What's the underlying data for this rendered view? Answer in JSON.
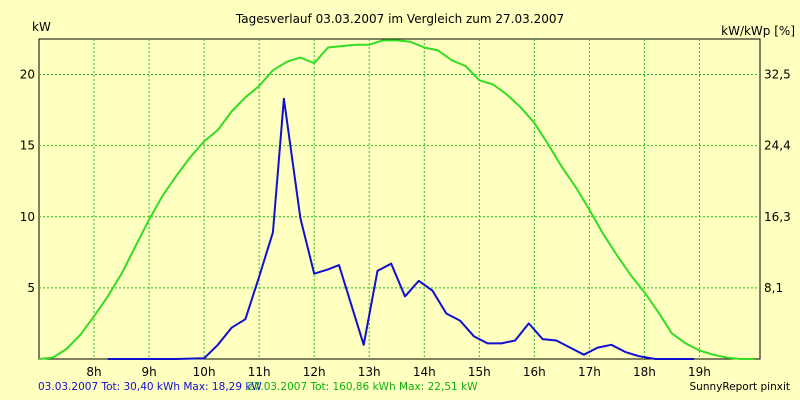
{
  "chart_data": {
    "type": "line",
    "title": "Tagesverlauf 03.03.2007 im Vergleich zum 27.03.2007",
    "ylabel_left": "kW",
    "ylabel_right": "kW/kWp [%]",
    "xlim": [
      7.0,
      20.1
    ],
    "ylim": [
      0,
      22.5
    ],
    "x_ticks": [
      {
        "x": 8,
        "label": "8h"
      },
      {
        "x": 9,
        "label": "9h"
      },
      {
        "x": 10,
        "label": "10h"
      },
      {
        "x": 11,
        "label": "11h"
      },
      {
        "x": 12,
        "label": "12h"
      },
      {
        "x": 13,
        "label": "13h"
      },
      {
        "x": 14,
        "label": "14h"
      },
      {
        "x": 15,
        "label": "15h"
      },
      {
        "x": 16,
        "label": "16h"
      },
      {
        "x": 17,
        "label": "17h"
      },
      {
        "x": 18,
        "label": "18h"
      },
      {
        "x": 19,
        "label": "19h"
      }
    ],
    "y_ticks_left": [
      {
        "v": 5,
        "label": "5"
      },
      {
        "v": 10,
        "label": "10"
      },
      {
        "v": 15,
        "label": "15"
      },
      {
        "v": 20,
        "label": "20"
      }
    ],
    "y_ticks_right": [
      {
        "v": 5,
        "label": "8,1"
      },
      {
        "v": 10,
        "label": "16,3"
      },
      {
        "v": 15,
        "label": "24,4"
      },
      {
        "v": 20,
        "label": "32,5"
      }
    ],
    "grid": true,
    "series": [
      {
        "name": "03.03.2007",
        "color": "#1010d0",
        "points": [
          [
            8.25,
            0
          ],
          [
            9.5,
            0
          ],
          [
            10.0,
            0.05
          ],
          [
            10.25,
            1.0
          ],
          [
            10.5,
            2.2
          ],
          [
            10.75,
            2.8
          ],
          [
            11.0,
            5.8
          ],
          [
            11.25,
            8.9
          ],
          [
            11.45,
            18.3
          ],
          [
            11.75,
            9.9
          ],
          [
            12.0,
            6.0
          ],
          [
            12.25,
            6.3
          ],
          [
            12.45,
            6.6
          ],
          [
            12.9,
            1.0
          ],
          [
            13.15,
            6.2
          ],
          [
            13.4,
            6.7
          ],
          [
            13.65,
            4.4
          ],
          [
            13.9,
            5.5
          ],
          [
            14.15,
            4.8
          ],
          [
            14.4,
            3.2
          ],
          [
            14.65,
            2.7
          ],
          [
            14.9,
            1.6
          ],
          [
            15.15,
            1.1
          ],
          [
            15.4,
            1.1
          ],
          [
            15.65,
            1.3
          ],
          [
            15.9,
            2.5
          ],
          [
            16.15,
            1.4
          ],
          [
            16.4,
            1.3
          ],
          [
            16.65,
            0.8
          ],
          [
            16.9,
            0.3
          ],
          [
            17.15,
            0.8
          ],
          [
            17.4,
            1.0
          ],
          [
            17.65,
            0.5
          ],
          [
            17.9,
            0.2
          ],
          [
            18.2,
            0.0
          ],
          [
            18.9,
            0.0
          ]
        ]
      },
      {
        "name": "27.03.2007",
        "color": "#33dd22",
        "points": [
          [
            7.0,
            0
          ],
          [
            7.25,
            0.1
          ],
          [
            7.5,
            0.7
          ],
          [
            7.75,
            1.7
          ],
          [
            8.0,
            3.0
          ],
          [
            8.25,
            4.4
          ],
          [
            8.5,
            6.0
          ],
          [
            8.75,
            7.9
          ],
          [
            9.0,
            9.8
          ],
          [
            9.25,
            11.5
          ],
          [
            9.5,
            12.9
          ],
          [
            9.75,
            14.2
          ],
          [
            10.0,
            15.3
          ],
          [
            10.25,
            16.1
          ],
          [
            10.5,
            17.4
          ],
          [
            10.75,
            18.4
          ],
          [
            11.0,
            19.2
          ],
          [
            11.25,
            20.3
          ],
          [
            11.5,
            20.9
          ],
          [
            11.75,
            21.2
          ],
          [
            12.0,
            20.8
          ],
          [
            12.25,
            21.9
          ],
          [
            12.5,
            22.0
          ],
          [
            12.75,
            22.1
          ],
          [
            13.0,
            22.1
          ],
          [
            13.25,
            22.4
          ],
          [
            13.5,
            22.4
          ],
          [
            13.75,
            22.3
          ],
          [
            14.0,
            21.9
          ],
          [
            14.25,
            21.7
          ],
          [
            14.5,
            21.0
          ],
          [
            14.75,
            20.6
          ],
          [
            15.0,
            19.6
          ],
          [
            15.25,
            19.3
          ],
          [
            15.5,
            18.6
          ],
          [
            15.75,
            17.7
          ],
          [
            16.0,
            16.6
          ],
          [
            16.25,
            15.1
          ],
          [
            16.5,
            13.5
          ],
          [
            16.75,
            12.1
          ],
          [
            17.0,
            10.5
          ],
          [
            17.25,
            8.8
          ],
          [
            17.5,
            7.3
          ],
          [
            17.75,
            5.9
          ],
          [
            18.0,
            4.7
          ],
          [
            18.25,
            3.3
          ],
          [
            18.5,
            1.8
          ],
          [
            18.75,
            1.1
          ],
          [
            19.0,
            0.6
          ],
          [
            19.25,
            0.3
          ],
          [
            19.5,
            0.1
          ],
          [
            19.75,
            0.0
          ],
          [
            20.0,
            0.0
          ]
        ]
      }
    ]
  },
  "footer": {
    "series1_summary": "03.03.2007 Tot: 30,40 kWh Max: 18,29 kW",
    "series2_summary": "27.03.2007 Tot: 160,86 kWh Max: 22,51 kW",
    "credit": "SunnyReport pinxit"
  }
}
